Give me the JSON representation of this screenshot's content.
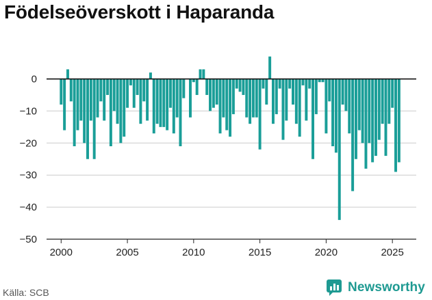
{
  "title": "Födelseöverskott i Haparanda",
  "source": "Källa: SCB",
  "brand": {
    "name": "Newsworthy",
    "icon": "newsworthy-logo-icon"
  },
  "colors": {
    "bar": "#1a9e98",
    "zero_line": "#111111",
    "grid": "#cccccc",
    "brand": "#1e9a92"
  },
  "chart_data": {
    "type": "bar",
    "title": "Födelseöverskott i Haparanda",
    "xlabel": "",
    "ylabel": "",
    "ylim": [
      -50,
      8
    ],
    "xlim": [
      1998.9,
      2026.8
    ],
    "grid": true,
    "yticks": [
      0,
      -10,
      -20,
      -30,
      -40,
      -50
    ],
    "ytick_labels": [
      "0",
      "−10",
      "−20",
      "−30",
      "−40",
      "−50"
    ],
    "xticks": [
      2000,
      2005,
      2010,
      2015,
      2020,
      2025
    ],
    "xtick_labels": [
      "2000",
      "2005",
      "2010",
      "2015",
      "2020",
      "2025"
    ],
    "bar_frequency": "quarterly",
    "x_start": 2000.0,
    "values": [
      -8,
      -16,
      3,
      -7,
      -21,
      -16,
      -13,
      -20,
      -25,
      -13,
      -25,
      -12,
      -7,
      -13,
      -5,
      -21,
      -10,
      -14,
      -20,
      -18,
      -9,
      -2,
      -9,
      -5,
      -14,
      -7,
      -13,
      2,
      -17,
      -14,
      -15,
      -15,
      -16,
      -9,
      -17,
      -12,
      -21,
      -6,
      0,
      -12,
      -1,
      -5,
      3,
      3,
      -5,
      -10,
      -9,
      -8,
      -17,
      -12,
      -16,
      -18,
      -11,
      -3,
      -4,
      -5,
      -12,
      -14,
      -12,
      -12,
      -22,
      -3,
      -8,
      7,
      -14,
      -11,
      -3,
      -19,
      -13,
      -3,
      -8,
      -14,
      -18,
      -2,
      -13,
      -3,
      -25,
      -11,
      -1,
      -1,
      -17,
      -7,
      -21,
      -23,
      -44,
      -8,
      -10,
      -17,
      -35,
      -25,
      -16,
      -20,
      -28,
      -20,
      -26,
      -24,
      -19,
      -14,
      -24,
      -14,
      -9,
      -29,
      -26
    ]
  }
}
